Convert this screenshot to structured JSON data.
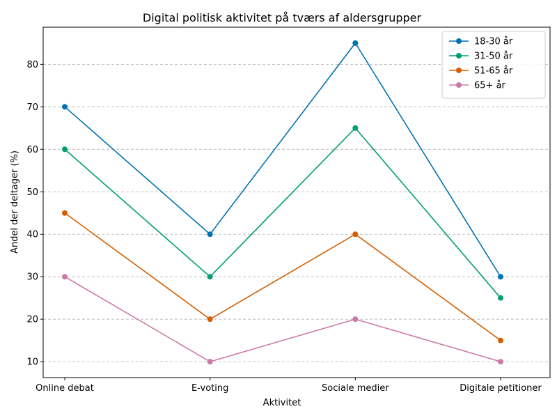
{
  "chart_data": {
    "type": "line",
    "title": "Digital politisk aktivitet på tværs af aldersgrupper",
    "xlabel": "Aktivitet",
    "ylabel": "Andel der deltager (%)",
    "categories": [
      "Online debat",
      "E-voting",
      "Sociale medier",
      "Digitale petitioner"
    ],
    "ylim": [
      6.25,
      88.75
    ],
    "yticks": [
      10,
      20,
      30,
      40,
      50,
      60,
      70,
      80
    ],
    "grid": "horizontal dashed",
    "legend_position": "top-right",
    "series": [
      {
        "name": "18-30 år",
        "color": "#0072b2",
        "values": [
          70,
          40,
          85,
          30
        ]
      },
      {
        "name": "31-50 år",
        "color": "#009e73",
        "values": [
          60,
          30,
          65,
          25
        ]
      },
      {
        "name": "51-65 år",
        "color": "#d55e00",
        "values": [
          45,
          20,
          40,
          15
        ]
      },
      {
        "name": "65+ år",
        "color": "#cc79a7",
        "values": [
          30,
          10,
          20,
          10
        ]
      }
    ]
  }
}
